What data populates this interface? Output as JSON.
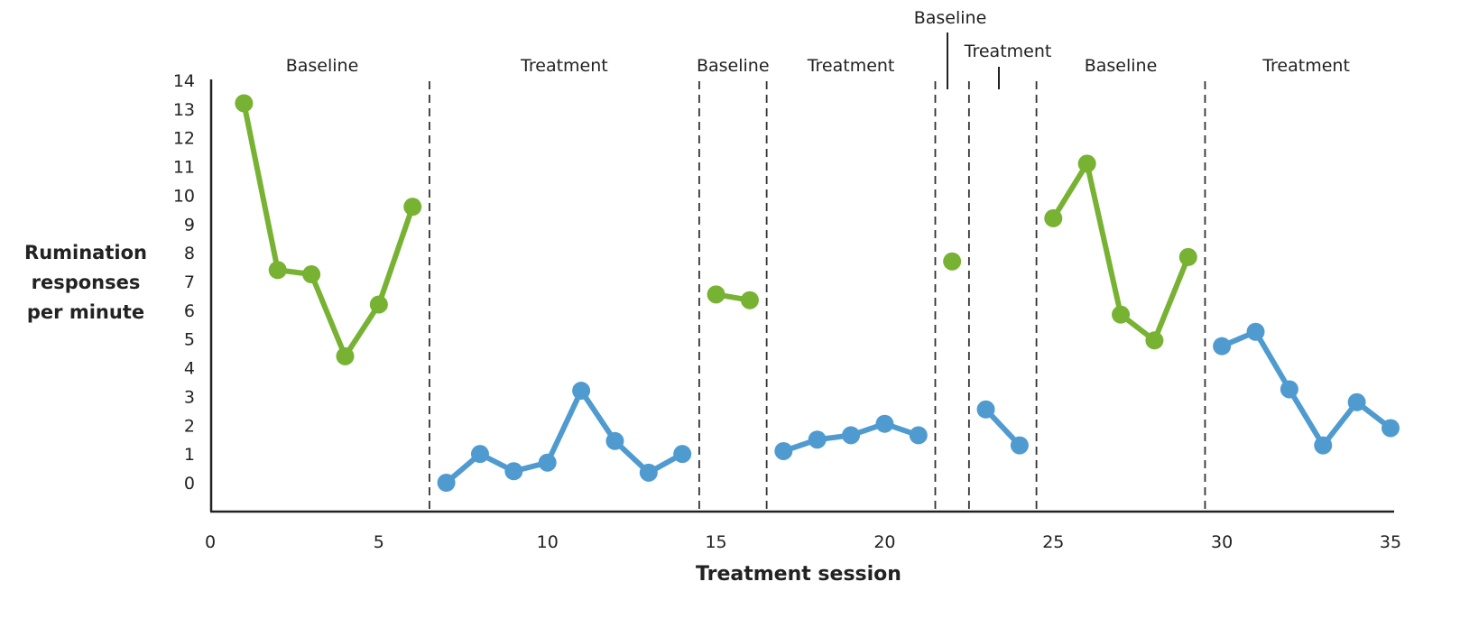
{
  "chart_data": {
    "type": "line",
    "title": "",
    "xlabel": "Treatment session",
    "ylabel_lines": [
      "Rumination",
      "responses",
      "per minute"
    ],
    "xlim": [
      0,
      35
    ],
    "ylim": [
      0,
      14
    ],
    "xticks": [
      0,
      5,
      10,
      15,
      20,
      25,
      30,
      35
    ],
    "yticks": [
      0,
      1,
      2,
      3,
      4,
      5,
      6,
      7,
      8,
      9,
      10,
      11,
      12,
      13,
      14
    ],
    "grid": false,
    "colors": {
      "baseline": "#77b233",
      "treatment": "#4f9bd0",
      "axis": "#222222"
    },
    "phase_boundaries": [
      6.5,
      14.5,
      16.5,
      21.5,
      22.5,
      24.5,
      29.5
    ],
    "phases": [
      {
        "label": "Baseline",
        "type": "baseline",
        "x": [
          1,
          2,
          3,
          4,
          5,
          6
        ],
        "y": [
          13.2,
          7.4,
          7.25,
          4.4,
          6.2,
          9.6
        ]
      },
      {
        "label": "Treatment",
        "type": "treatment",
        "x": [
          7,
          8,
          9,
          10,
          11,
          12,
          13,
          14
        ],
        "y": [
          0,
          1.0,
          0.4,
          0.7,
          3.2,
          1.45,
          0.35,
          1.0
        ]
      },
      {
        "label": "Baseline",
        "type": "baseline",
        "x": [
          15,
          16
        ],
        "y": [
          6.55,
          6.35
        ]
      },
      {
        "label": "Treatment",
        "type": "treatment",
        "x": [
          17,
          18,
          19,
          20,
          21
        ],
        "y": [
          1.1,
          1.5,
          1.65,
          2.05,
          1.65
        ]
      },
      {
        "label": "Baseline",
        "type": "baseline",
        "x": [
          22
        ],
        "y": [
          7.7
        ]
      },
      {
        "label": "Treatment",
        "type": "treatment",
        "x": [
          23,
          24
        ],
        "y": [
          2.55,
          1.3
        ]
      },
      {
        "label": "Baseline",
        "type": "baseline",
        "x": [
          25,
          26,
          27,
          28,
          29
        ],
        "y": [
          9.2,
          11.1,
          5.85,
          4.95,
          7.85
        ]
      },
      {
        "label": "Treatment",
        "type": "treatment",
        "x": [
          30,
          31,
          32,
          33,
          34,
          35
        ],
        "y": [
          4.75,
          5.25,
          3.25,
          1.3,
          2.8,
          1.9
        ]
      }
    ]
  }
}
